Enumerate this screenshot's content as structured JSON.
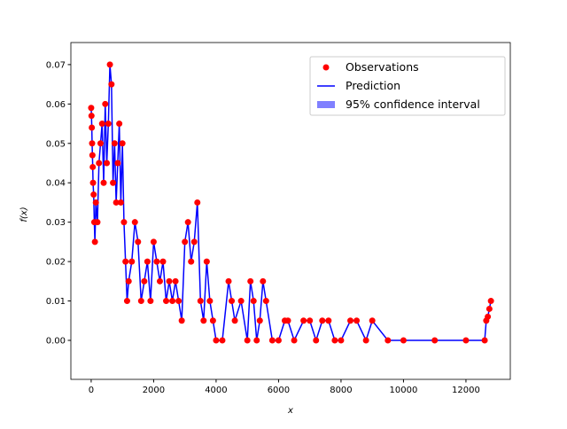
{
  "chart_data": {
    "type": "scatter",
    "xlabel": "x",
    "ylabel": "f(x)",
    "x": [
      0,
      10,
      20,
      30,
      40,
      50,
      60,
      80,
      100,
      120,
      150,
      200,
      250,
      300,
      350,
      400,
      450,
      500,
      550,
      600,
      650,
      700,
      750,
      800,
      850,
      900,
      950,
      1000,
      1050,
      1100,
      1150,
      1200,
      1300,
      1400,
      1500,
      1600,
      1700,
      1800,
      1900,
      2000,
      2100,
      2200,
      2300,
      2400,
      2500,
      2600,
      2700,
      2800,
      2900,
      3000,
      3100,
      3200,
      3300,
      3400,
      3500,
      3600,
      3700,
      3800,
      3900,
      4000,
      4200,
      4400,
      4500,
      4600,
      4800,
      5000,
      5100,
      5200,
      5300,
      5400,
      5500,
      5600,
      5800,
      6000,
      6200,
      6300,
      6500,
      6800,
      7000,
      7200,
      7400,
      7600,
      7800,
      8000,
      8300,
      8500,
      8800,
      9000,
      9500,
      10000,
      11000,
      12000,
      12600,
      12650,
      12700,
      12750,
      12800
    ],
    "series": [
      {
        "name": "Observations",
        "color": "#ff0000",
        "values": [
          0.059,
          0.057,
          0.054,
          0.05,
          0.047,
          0.044,
          0.04,
          0.037,
          0.03,
          0.025,
          0.035,
          0.03,
          0.045,
          0.05,
          0.055,
          0.04,
          0.06,
          0.045,
          0.055,
          0.07,
          0.065,
          0.04,
          0.05,
          0.035,
          0.045,
          0.055,
          0.035,
          0.05,
          0.03,
          0.02,
          0.01,
          0.015,
          0.02,
          0.03,
          0.025,
          0.01,
          0.015,
          0.02,
          0.01,
          0.025,
          0.02,
          0.015,
          0.02,
          0.01,
          0.015,
          0.01,
          0.015,
          0.01,
          0.005,
          0.025,
          0.03,
          0.02,
          0.025,
          0.035,
          0.01,
          0.005,
          0.02,
          0.01,
          0.005,
          0.0,
          0.0,
          0.015,
          0.01,
          0.005,
          0.01,
          0.0,
          0.015,
          0.01,
          0.0,
          0.005,
          0.015,
          0.01,
          0.0,
          0.0,
          0.005,
          0.005,
          0.0,
          0.005,
          0.005,
          0.0,
          0.005,
          0.005,
          0.0,
          0.0,
          0.005,
          0.005,
          0.0,
          0.005,
          0.0,
          0.0,
          0.0,
          0.0,
          0.0,
          0.005,
          0.006,
          0.008,
          0.01
        ]
      },
      {
        "name": "Prediction",
        "color": "#0000ff",
        "values": [
          0.059,
          0.057,
          0.054,
          0.05,
          0.047,
          0.044,
          0.04,
          0.037,
          0.03,
          0.025,
          0.035,
          0.03,
          0.045,
          0.05,
          0.055,
          0.04,
          0.06,
          0.045,
          0.055,
          0.07,
          0.065,
          0.04,
          0.05,
          0.035,
          0.045,
          0.055,
          0.035,
          0.05,
          0.03,
          0.02,
          0.01,
          0.015,
          0.02,
          0.03,
          0.025,
          0.01,
          0.015,
          0.02,
          0.01,
          0.025,
          0.02,
          0.015,
          0.02,
          0.01,
          0.015,
          0.01,
          0.015,
          0.01,
          0.005,
          0.025,
          0.03,
          0.02,
          0.025,
          0.035,
          0.01,
          0.005,
          0.02,
          0.01,
          0.005,
          0.0,
          0.0,
          0.015,
          0.01,
          0.005,
          0.01,
          0.0,
          0.015,
          0.01,
          0.0,
          0.005,
          0.015,
          0.01,
          0.0,
          0.0,
          0.005,
          0.005,
          0.0,
          0.005,
          0.005,
          0.0,
          0.005,
          0.005,
          0.0,
          0.0,
          0.005,
          0.005,
          0.0,
          0.005,
          0.0,
          0.0,
          0.0,
          0.0,
          0.0,
          0.005,
          0.006,
          0.008,
          0.01
        ]
      },
      {
        "name": "95% confidence interval",
        "color": "#8080ff"
      }
    ],
    "xlim": [
      -650,
      13420
    ],
    "ylim": [
      -0.0099,
      0.0756
    ],
    "xticks": [
      0,
      2000,
      4000,
      6000,
      8000,
      10000,
      12000
    ],
    "yticks": [
      {
        "value": 0,
        "label": "0.00"
      },
      0.01,
      0.02,
      0.03,
      0.04,
      0.05,
      0.06,
      0.07
    ],
    "legend": "upper right"
  }
}
